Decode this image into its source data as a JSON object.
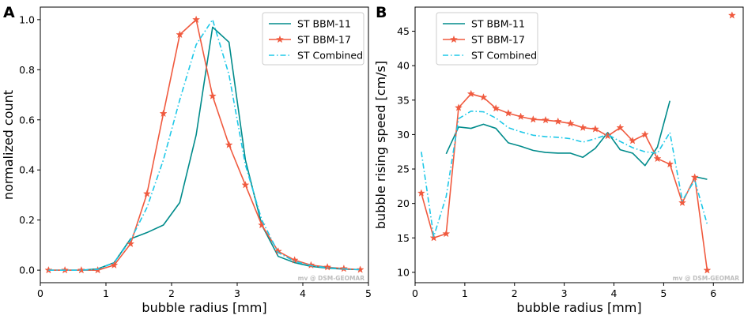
{
  "colors": {
    "bbm11": "#008b8b",
    "bbm17": "#f05a3f",
    "combined": "#1ec8e8"
  },
  "watermark": "mv @ DSM-GEOMAR",
  "chart_data": [
    {
      "panel": "A",
      "type": "line",
      "xlabel": "bubble radius [mm]",
      "ylabel": "normalized count",
      "xlim": [
        0,
        5
      ],
      "ylim": [
        -0.05,
        1.05
      ],
      "xticks": [
        0,
        1,
        2,
        3,
        4,
        5
      ],
      "yticks": [
        0.0,
        0.2,
        0.4,
        0.6,
        0.8,
        1.0
      ],
      "xtick_labels": [
        "0",
        "1",
        "2",
        "3",
        "4",
        "5"
      ],
      "ytick_labels": [
        "0.0",
        "0.2",
        "0.4",
        "0.6",
        "0.8",
        "1.0"
      ],
      "legend_position": "top-right",
      "series": [
        {
          "name": "ST BBM-11",
          "color_key": "bbm11",
          "style": "solid",
          "marker": "none",
          "x": [
            0.125,
            0.375,
            0.625,
            0.875,
            1.125,
            1.375,
            1.625,
            1.875,
            2.125,
            2.375,
            2.625,
            2.875,
            3.125,
            3.375,
            3.625,
            3.875,
            4.125,
            4.375,
            4.625,
            4.875
          ],
          "y": [
            0.0,
            0.0,
            0.0,
            0.005,
            0.03,
            0.125,
            0.15,
            0.18,
            0.27,
            0.54,
            0.97,
            0.91,
            0.44,
            0.18,
            0.055,
            0.03,
            0.015,
            0.008,
            0.004,
            0.002
          ]
        },
        {
          "name": "ST BBM-17",
          "color_key": "bbm17",
          "style": "solid",
          "marker": "star",
          "x": [
            0.125,
            0.375,
            0.625,
            0.875,
            1.125,
            1.375,
            1.625,
            1.875,
            2.125,
            2.375,
            2.625,
            2.875,
            3.125,
            3.375,
            3.625,
            3.875,
            4.125,
            4.375,
            4.625,
            4.875
          ],
          "y": [
            0.0,
            0.0,
            0.0,
            0.0,
            0.02,
            0.105,
            0.305,
            0.625,
            0.94,
            1.0,
            0.695,
            0.5,
            0.34,
            0.18,
            0.075,
            0.04,
            0.02,
            0.012,
            0.006,
            0.002
          ]
        },
        {
          "name": "ST Combined",
          "color_key": "combined",
          "style": "dashdot",
          "marker": "none",
          "x": [
            0.125,
            0.375,
            0.625,
            0.875,
            1.125,
            1.375,
            1.625,
            1.875,
            2.125,
            2.375,
            2.625,
            2.875,
            3.125,
            3.375,
            3.625,
            3.875,
            4.125,
            4.375,
            4.625,
            4.875
          ],
          "y": [
            0.0,
            0.0,
            0.0,
            0.003,
            0.03,
            0.12,
            0.25,
            0.44,
            0.68,
            0.9,
            1.0,
            0.78,
            0.42,
            0.2,
            0.07,
            0.035,
            0.018,
            0.01,
            0.005,
            0.002
          ]
        }
      ]
    },
    {
      "panel": "B",
      "type": "line",
      "xlabel": "bubble radius [mm]",
      "ylabel": "bubble rising speed [cm/s]",
      "xlim": [
        0,
        6.6
      ],
      "ylim": [
        8.5,
        48.5
      ],
      "xticks": [
        0,
        1,
        2,
        3,
        4,
        5,
        6
      ],
      "yticks": [
        10,
        15,
        20,
        25,
        30,
        35,
        40,
        45
      ],
      "xtick_labels": [
        "0",
        "1",
        "2",
        "3",
        "4",
        "5",
        "6"
      ],
      "ytick_labels": [
        "10",
        "15",
        "20",
        "25",
        "30",
        "35",
        "40",
        "45"
      ],
      "legend_position": "top-left",
      "series": [
        {
          "name": "ST BBM-11",
          "color_key": "bbm11",
          "style": "solid",
          "marker": "none",
          "segments": [
            {
              "x": [
                0.625,
                0.875,
                1.125,
                1.375,
                1.625,
                1.875,
                2.125,
                2.375,
                2.625,
                2.875,
                3.125,
                3.375,
                3.625,
                3.875,
                4.125,
                4.375,
                4.625,
                4.875,
                5.125
              ],
              "y": [
                27.2,
                31.1,
                30.9,
                31.5,
                30.9,
                28.8,
                28.3,
                27.7,
                27.4,
                27.3,
                27.3,
                26.7,
                28.0,
                30.3,
                27.8,
                27.3,
                25.5,
                28.2,
                34.9
              ]
            },
            {
              "x": [
                5.625,
                5.875
              ],
              "y": [
                23.9,
                23.5
              ]
            }
          ]
        },
        {
          "name": "ST BBM-17",
          "color_key": "bbm17",
          "style": "solid",
          "marker": "star",
          "x": [
            0.125,
            0.375,
            0.625,
            0.875,
            1.125,
            1.375,
            1.625,
            1.875,
            2.125,
            2.375,
            2.625,
            2.875,
            3.125,
            3.375,
            3.625,
            3.875,
            4.125,
            4.375,
            4.625,
            4.875,
            5.125,
            5.375,
            5.625,
            5.875
          ],
          "y": [
            21.5,
            15.0,
            15.6,
            33.9,
            35.9,
            35.4,
            33.8,
            33.1,
            32.6,
            32.2,
            32.1,
            31.9,
            31.6,
            31.0,
            30.8,
            29.8,
            31.0,
            29.1,
            30.0,
            26.5,
            25.7,
            20.1,
            23.8,
            10.3
          ],
          "isolated": {
            "x": [
              6.375
            ],
            "y": [
              47.3
            ]
          }
        },
        {
          "name": "ST Combined",
          "color_key": "combined",
          "style": "dashdot",
          "marker": "none",
          "x": [
            0.125,
            0.375,
            0.625,
            0.875,
            1.125,
            1.375,
            1.625,
            1.875,
            2.125,
            2.375,
            2.625,
            2.875,
            3.125,
            3.375,
            3.625,
            3.875,
            4.125,
            4.375,
            4.625,
            4.875,
            5.125,
            5.375,
            5.625,
            5.875
          ],
          "y": [
            27.5,
            15.2,
            21.0,
            32.3,
            33.4,
            33.3,
            32.4,
            31.0,
            30.4,
            29.9,
            29.7,
            29.6,
            29.4,
            28.9,
            29.4,
            30.0,
            29.0,
            28.1,
            27.5,
            27.3,
            30.3,
            20.4,
            23.4,
            17.0
          ]
        }
      ]
    }
  ]
}
